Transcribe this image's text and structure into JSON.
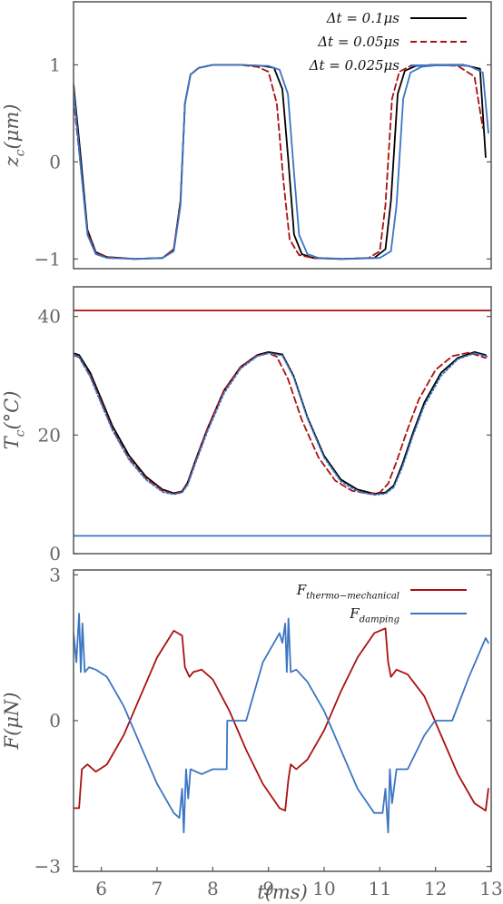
{
  "chart_data": [
    {
      "type": "line",
      "ylabel": "z_c(μm)",
      "xlabel": "",
      "xlim": [
        5.5,
        13.0
      ],
      "ylim": [
        -1.1,
        1.65
      ],
      "yticks": [
        {
          "value": -1,
          "label": "−1"
        },
        {
          "value": 0,
          "label": "0"
        },
        {
          "value": 1,
          "label": "1"
        }
      ],
      "xticks": [],
      "legend_position": "top-right",
      "series": [
        {
          "name": "Δt = 0.1μs",
          "color": "#000000",
          "dash": "solid",
          "x": [
            5.5,
            5.62,
            5.75,
            5.9,
            6.1,
            6.6,
            7.1,
            7.3,
            7.42,
            7.5,
            7.6,
            7.75,
            8.0,
            8.5,
            8.9,
            9.1,
            9.25,
            9.36,
            9.46,
            9.6,
            9.8,
            10.3,
            10.9,
            11.1,
            11.2,
            11.32,
            11.45,
            11.65,
            12.0,
            12.5,
            12.8,
            12.9
          ],
          "y": [
            0.8,
            0.1,
            -0.7,
            -0.93,
            -0.98,
            -1,
            -0.99,
            -0.9,
            -0.4,
            0.6,
            0.9,
            0.97,
            1,
            1,
            0.99,
            0.97,
            0.75,
            0.0,
            -0.75,
            -0.95,
            -0.99,
            -1,
            -0.99,
            -0.9,
            -0.4,
            0.7,
            0.94,
            0.99,
            1,
            1,
            0.96,
            0.05
          ]
        },
        {
          "name": "Δt = 0.05μs",
          "color": "#aa1111",
          "dash": "dashed",
          "x": [
            5.5,
            5.62,
            5.75,
            5.9,
            6.1,
            6.6,
            7.1,
            7.3,
            7.42,
            7.5,
            7.6,
            7.75,
            8.0,
            8.5,
            8.8,
            9.0,
            9.15,
            9.27,
            9.38,
            9.55,
            9.8,
            10.3,
            10.8,
            11.0,
            11.1,
            11.22,
            11.35,
            11.55,
            11.9,
            12.4,
            12.7,
            12.85
          ],
          "y": [
            0.65,
            0.0,
            -0.72,
            -0.94,
            -0.98,
            -1,
            -0.99,
            -0.9,
            -0.42,
            0.6,
            0.9,
            0.97,
            1,
            1,
            0.98,
            0.93,
            0.6,
            -0.2,
            -0.8,
            -0.96,
            -0.99,
            -1,
            -0.99,
            -0.92,
            -0.45,
            0.65,
            0.93,
            0.99,
            1,
            0.99,
            0.88,
            0.35
          ]
        },
        {
          "name": "Δt = 0.025μs",
          "color": "#3b75c4",
          "dash": "solid",
          "x": [
            5.5,
            5.62,
            5.75,
            5.9,
            6.1,
            6.6,
            7.1,
            7.3,
            7.42,
            7.5,
            7.6,
            7.75,
            8.0,
            8.5,
            9.0,
            9.2,
            9.35,
            9.45,
            9.55,
            9.7,
            9.9,
            10.4,
            11.0,
            11.2,
            11.3,
            11.42,
            11.55,
            11.75,
            12.1,
            12.6,
            12.85,
            12.95
          ],
          "y": [
            0.75,
            0.0,
            -0.75,
            -0.95,
            -0.99,
            -1,
            -0.99,
            -0.92,
            -0.45,
            0.6,
            0.9,
            0.97,
            1,
            1,
            0.99,
            0.95,
            0.7,
            -0.05,
            -0.75,
            -0.95,
            -0.99,
            -1,
            -0.99,
            -0.92,
            -0.45,
            0.65,
            0.92,
            0.98,
            1,
            0.99,
            0.92,
            0.3
          ]
        }
      ]
    },
    {
      "type": "line",
      "ylabel": "T_c(°C)",
      "xlabel": "",
      "xlim": [
        5.5,
        13.0
      ],
      "ylim": [
        0,
        45
      ],
      "yticks": [
        {
          "value": 0,
          "label": "0"
        },
        {
          "value": 20,
          "label": "20"
        },
        {
          "value": 40,
          "label": "40"
        }
      ],
      "xticks": [],
      "series": [
        {
          "name": "",
          "color": "#aa1111",
          "dash": "solid",
          "width": 1.8,
          "x": [
            5.5,
            13.0
          ],
          "y": [
            41,
            41
          ]
        },
        {
          "name": "",
          "color": "#3b75c4",
          "dash": "solid",
          "width": 1.8,
          "x": [
            5.5,
            13.0
          ],
          "y": [
            3,
            3
          ]
        },
        {
          "name": "",
          "color": "#000000",
          "dash": "solid",
          "x": [
            5.5,
            5.6,
            5.8,
            6.0,
            6.2,
            6.5,
            6.8,
            7.1,
            7.3,
            7.45,
            7.55,
            7.7,
            7.9,
            8.2,
            8.5,
            8.8,
            9.0,
            9.25,
            9.45,
            9.7,
            10.0,
            10.3,
            10.6,
            10.9,
            11.1,
            11.25,
            11.4,
            11.6,
            11.8,
            12.1,
            12.4,
            12.7,
            12.9
          ],
          "y": [
            33.8,
            33.5,
            30.5,
            26,
            21.5,
            16.5,
            13,
            10.8,
            10.2,
            10.5,
            12,
            16,
            21,
            27.5,
            31.5,
            33.5,
            34,
            33.6,
            30,
            23,
            16.5,
            12.5,
            10.8,
            10.1,
            10.3,
            11.5,
            15,
            20.5,
            25.5,
            30.5,
            33,
            34,
            33.5
          ]
        },
        {
          "name": "",
          "color": "#aa1111",
          "dash": "dashed",
          "x": [
            5.5,
            5.6,
            5.8,
            6.0,
            6.2,
            6.5,
            6.8,
            7.1,
            7.3,
            7.45,
            7.55,
            7.7,
            7.9,
            8.2,
            8.5,
            8.8,
            9.0,
            9.15,
            9.35,
            9.6,
            9.9,
            10.2,
            10.5,
            10.8,
            11.0,
            11.15,
            11.3,
            11.5,
            11.7,
            12.0,
            12.3,
            12.6,
            12.9
          ],
          "y": [
            33.5,
            33.1,
            30,
            25.5,
            21,
            16,
            12.7,
            10.6,
            10.1,
            10.4,
            11.8,
            15.8,
            21,
            27.5,
            31.5,
            33.4,
            33.8,
            33.2,
            29.5,
            22.5,
            16.2,
            12.3,
            10.6,
            10.1,
            10.3,
            11.8,
            15.5,
            21,
            26,
            31,
            33.3,
            33.9,
            33
          ]
        },
        {
          "name": "",
          "color": "#3b75c4",
          "dash": "dotted",
          "x": [
            5.5,
            5.6,
            5.8,
            6.0,
            6.2,
            6.5,
            6.8,
            7.1,
            7.3,
            7.45,
            7.55,
            7.7,
            7.9,
            8.2,
            8.5,
            8.8,
            9.0,
            9.25,
            9.45,
            9.7,
            10.0,
            10.3,
            10.6,
            10.9,
            11.1,
            11.25,
            11.4,
            11.6,
            11.8,
            12.1,
            12.4,
            12.7,
            12.95
          ],
          "y": [
            33.6,
            33.2,
            29.8,
            25.2,
            20.8,
            15.8,
            12.5,
            10.4,
            10.0,
            10.3,
            11.6,
            15.5,
            20.5,
            27,
            31.2,
            33.3,
            33.8,
            33.4,
            29.8,
            22.8,
            16.2,
            12.2,
            10.5,
            9.9,
            10.1,
            11.2,
            14.5,
            20,
            25,
            30,
            32.8,
            33.8,
            33.2
          ]
        }
      ]
    },
    {
      "type": "line",
      "ylabel": "F(μN)",
      "xlabel": "t(ms)",
      "xlim": [
        5.5,
        13.0
      ],
      "ylim": [
        -3.1,
        3.1
      ],
      "yticks": [
        {
          "value": -3,
          "label": "−3"
        },
        {
          "value": 0,
          "label": "0"
        },
        {
          "value": 3,
          "label": "3"
        }
      ],
      "xticks": [
        {
          "value": 6,
          "label": "6"
        },
        {
          "value": 7,
          "label": "7"
        },
        {
          "value": 8,
          "label": "8"
        },
        {
          "value": 9,
          "label": "9"
        },
        {
          "value": 10,
          "label": "10"
        },
        {
          "value": 11,
          "label": "11"
        },
        {
          "value": 12,
          "label": "12"
        },
        {
          "value": 13,
          "label": "13"
        }
      ],
      "legend_position": "top-right",
      "series": [
        {
          "name": "F_thermo−mechanical",
          "color": "#aa1111",
          "dash": "solid",
          "x": [
            5.5,
            5.6,
            5.65,
            5.75,
            5.9,
            6.1,
            6.4,
            6.7,
            7.0,
            7.3,
            7.45,
            7.5,
            7.58,
            7.65,
            7.8,
            8.0,
            8.3,
            8.6,
            8.9,
            9.2,
            9.3,
            9.36,
            9.4,
            9.5,
            9.7,
            10.0,
            10.3,
            10.6,
            10.9,
            11.1,
            11.15,
            11.2,
            11.3,
            11.5,
            11.8,
            12.1,
            12.4,
            12.7,
            12.9,
            12.95
          ],
          "y": [
            -1.8,
            -1.8,
            -1.0,
            -0.9,
            -1.05,
            -0.9,
            -0.3,
            0.5,
            1.3,
            1.85,
            1.75,
            1.1,
            0.9,
            1.0,
            1.05,
            0.85,
            0.2,
            -0.6,
            -1.3,
            -1.8,
            -1.85,
            -1.2,
            -0.9,
            -1.0,
            -0.8,
            -0.2,
            0.6,
            1.3,
            1.8,
            1.9,
            1.2,
            0.9,
            1.05,
            0.95,
            0.5,
            -0.3,
            -1.1,
            -1.7,
            -1.85,
            -1.4
          ]
        },
        {
          "name": "F_damping",
          "color": "#3b75c4",
          "dash": "solid",
          "x": [
            5.5,
            5.55,
            5.6,
            5.63,
            5.66,
            5.7,
            5.78,
            5.9,
            6.1,
            6.4,
            6.7,
            7.0,
            7.3,
            7.4,
            7.45,
            7.48,
            7.52,
            7.56,
            7.6,
            7.8,
            8.0,
            8.25,
            8.26,
            8.6,
            8.9,
            9.2,
            9.25,
            9.3,
            9.33,
            9.36,
            9.4,
            9.5,
            9.7,
            10.0,
            10.3,
            10.6,
            10.9,
            11.05,
            11.1,
            11.15,
            11.18,
            11.22,
            11.3,
            11.5,
            11.8,
            11.99,
            12.0,
            12.3,
            12.6,
            12.9,
            12.95
          ],
          "y": [
            1.8,
            1.2,
            2.2,
            1.0,
            2.0,
            1.0,
            1.1,
            1.05,
            0.9,
            0.3,
            -0.5,
            -1.3,
            -1.9,
            -2.0,
            -1.4,
            -2.3,
            -1.0,
            -1.6,
            -1.0,
            -1.1,
            -1.0,
            -1.0,
            0.0,
            0.0,
            1.2,
            1.8,
            1.6,
            2.0,
            1.0,
            2.1,
            1.0,
            1.05,
            0.8,
            0.2,
            -0.6,
            -1.4,
            -1.9,
            -1.9,
            -1.4,
            -2.3,
            -1.0,
            -1.7,
            -1.0,
            -1.0,
            -0.3,
            0.0,
            0.0,
            0.0,
            0.9,
            1.7,
            1.6
          ]
        }
      ]
    }
  ]
}
